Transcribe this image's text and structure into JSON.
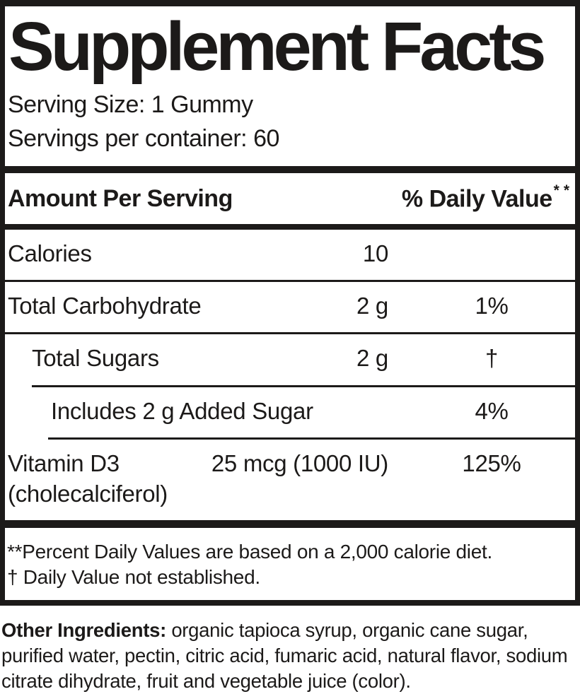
{
  "colors": {
    "ink": "#1c1a19",
    "background": "#ffffff"
  },
  "panel": {
    "title": "Supplement Facts",
    "serving_size": "Serving Size: 1 Gummy",
    "servings_per_container": "Servings per container: 60",
    "header": {
      "amount_label": "Amount Per Serving",
      "dv_label": "% Daily Value",
      "dv_sup": "**"
    },
    "rows": [
      {
        "name": "Calories",
        "amount": "10",
        "dv": ""
      },
      {
        "name": "Total Carbohydrate",
        "amount": "2 g",
        "dv": "1%"
      },
      {
        "name": "Total Sugars",
        "amount": "2 g",
        "dv": "†"
      },
      {
        "name": "Includes 2 g Added Sugar",
        "amount": "",
        "dv": "4%"
      },
      {
        "name": "Vitamin D3",
        "name_sub": "(cholecalciferol)",
        "amount": "25 mcg (1000 IU)",
        "dv": "125%"
      }
    ],
    "footnotes": {
      "percent_daily_value": "**Percent Daily Values are based on a 2,000 calorie diet.",
      "dagger": "†  Daily Value not established."
    }
  },
  "ingredients": {
    "label": "Other Ingredients:",
    "text": "organic tapioca syrup, organic cane sugar, purified water, pectin, citric acid, fumaric acid, natural flavor, sodium citrate dihydrate, fruit and vegetable juice (color)."
  }
}
